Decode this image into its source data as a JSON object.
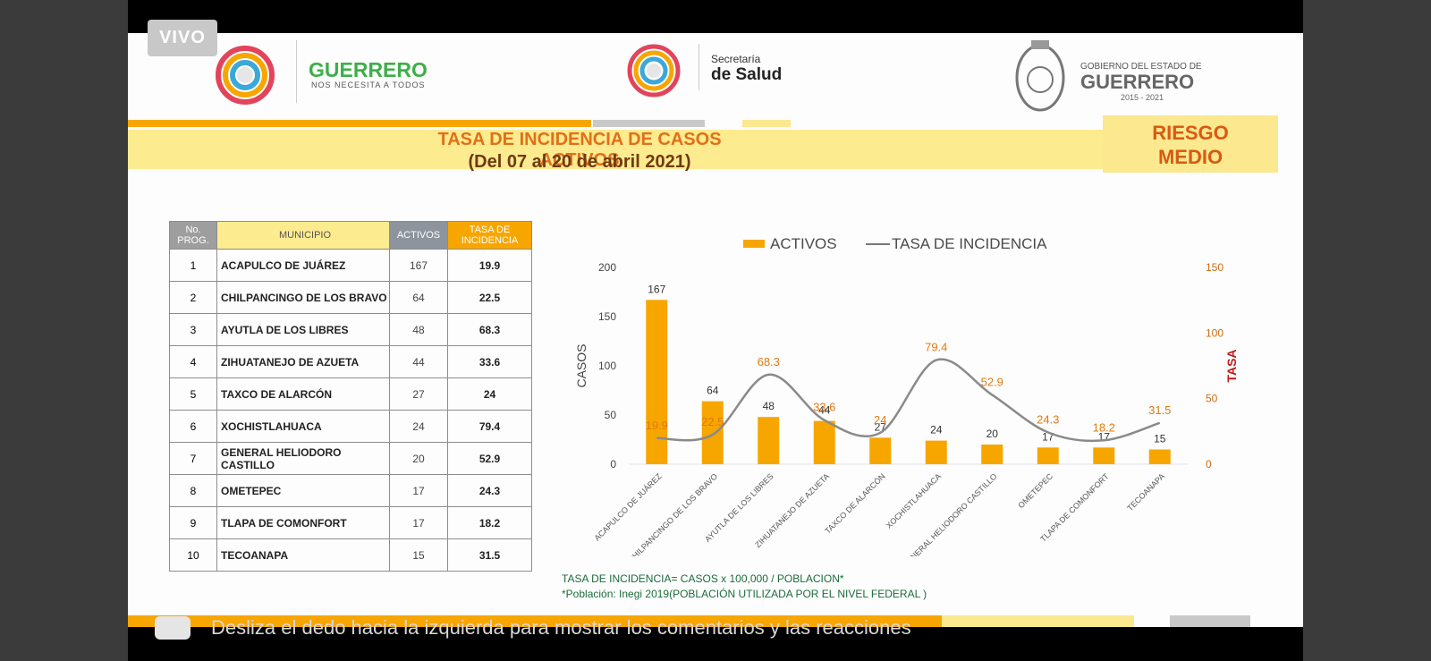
{
  "live_badge": "VIVO",
  "header": {
    "guerrero_logo_text": "GUERRERO",
    "guerrero_logo_sub": "NOS NECESITA A TODOS",
    "salud_top": "Secretaría",
    "salud_bottom": "de Salud",
    "gob_top": "GOBIERNO DEL ESTADO DE",
    "gob_main": "GUERRERO",
    "gob_years": "2015 - 2021"
  },
  "title_line1": "TASA DE INCIDENCIA DE CASOS ACTIVOS",
  "title_line2": "(Del 07 al 20 de abril 2021)",
  "risk_line1": "RIESGO",
  "risk_line2": "MEDIO",
  "table": {
    "headers": [
      "No. PROG.",
      "MUNICIPIO",
      "ACTIVOS",
      "TASA DE INCIDENCIA"
    ],
    "rows": [
      [
        "1",
        "ACAPULCO DE JUÁREZ",
        "167",
        "19.9"
      ],
      [
        "2",
        "CHILPANCINGO DE LOS BRAVO",
        "64",
        "22.5"
      ],
      [
        "3",
        "AYUTLA DE LOS LIBRES",
        "48",
        "68.3"
      ],
      [
        "4",
        "ZIHUATANEJO DE AZUETA",
        "44",
        "33.6"
      ],
      [
        "5",
        "TAXCO DE ALARCÓN",
        "27",
        "24"
      ],
      [
        "6",
        "XOCHISTLAHUACA",
        "24",
        "79.4"
      ],
      [
        "7",
        "GENERAL HELIODORO CASTILLO",
        "20",
        "52.9"
      ],
      [
        "8",
        "OMETEPEC",
        "17",
        "24.3"
      ],
      [
        "9",
        "TLAPA DE COMONFORT",
        "17",
        "18.2"
      ],
      [
        "10",
        "TECOANAPA",
        "15",
        "31.5"
      ]
    ]
  },
  "chart_data": {
    "type": "bar",
    "legend": [
      "ACTIVOS",
      "TASA DE INCIDENCIA"
    ],
    "legend_position": "top",
    "categories": [
      "ACAPULCO DE JUÁREZ",
      "CHILPANCINGO DE LOS BRAVO",
      "AYUTLA DE LOS LIBRES",
      "ZIHUATANEJO DE AZUETA",
      "TAXCO DE ALARCÓN",
      "XOCHISTLAHUACA",
      "GENERAL HELIODORO CASTILLO",
      "OMETEPEC",
      "TLAPA DE COMONFORT",
      "TECOANAPA"
    ],
    "series": [
      {
        "name": "ACTIVOS",
        "type": "bar",
        "axis": "left",
        "color": "#f7a600",
        "values": [
          167,
          64,
          48,
          44,
          27,
          24,
          20,
          17,
          17,
          15
        ]
      },
      {
        "name": "TASA DE INCIDENCIA",
        "type": "line",
        "axis": "right",
        "color": "#8a8a8a",
        "values": [
          19.9,
          22.5,
          68.3,
          33.6,
          24,
          79.4,
          52.9,
          24.3,
          18.2,
          31.5
        ]
      }
    ],
    "ylabel": "CASOS",
    "y2label": "TASA",
    "ylim": [
      0,
      200
    ],
    "yticks": [
      0,
      50,
      100,
      150,
      200
    ],
    "y2lim": [
      0,
      150
    ],
    "y2ticks": [
      0,
      50,
      100,
      150
    ],
    "grid": false
  },
  "notes": {
    "formula": "TASA DE INCIDENCIA= CASOS x 100,000 / POBLACION*",
    "source": "*Población: Inegi 2019(POBLACIÓN UTILIZADA POR EL NIVEL FEDERAL )"
  },
  "overlay_hint": "Desliza el dedo hacia la izquierda para mostrar los comentarios y las reacciones",
  "colors": {
    "orange": "#f7a600",
    "yellow": "#fdeb8f",
    "risk_text": "#d85a12",
    "line": "#8a8a8a"
  }
}
